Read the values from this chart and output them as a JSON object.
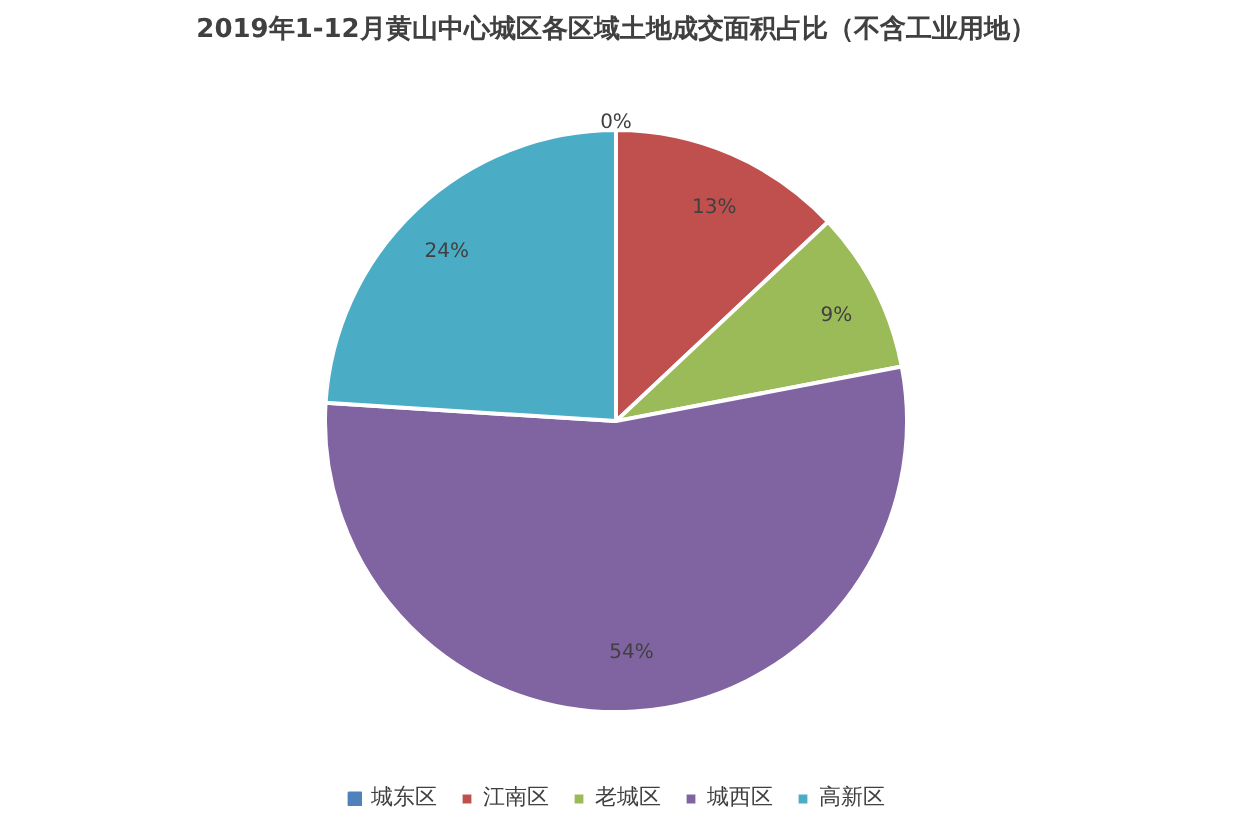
{
  "chart_data": {
    "type": "pie",
    "title": "2019年1-12月黄山中心城区各区域土地成交面积占比（不含工业用地）",
    "categories": [
      "城东区",
      "江南区",
      "老城区",
      "城西区",
      "高新区"
    ],
    "values": [
      0,
      13,
      9,
      54,
      24
    ],
    "colors": [
      "#4f81bd",
      "#c0504d",
      "#9bbb59",
      "#8064a2",
      "#4bacc6"
    ],
    "value_labels": [
      "0%",
      "13%",
      "9%",
      "54%",
      "24%"
    ],
    "legend": "bottom"
  }
}
